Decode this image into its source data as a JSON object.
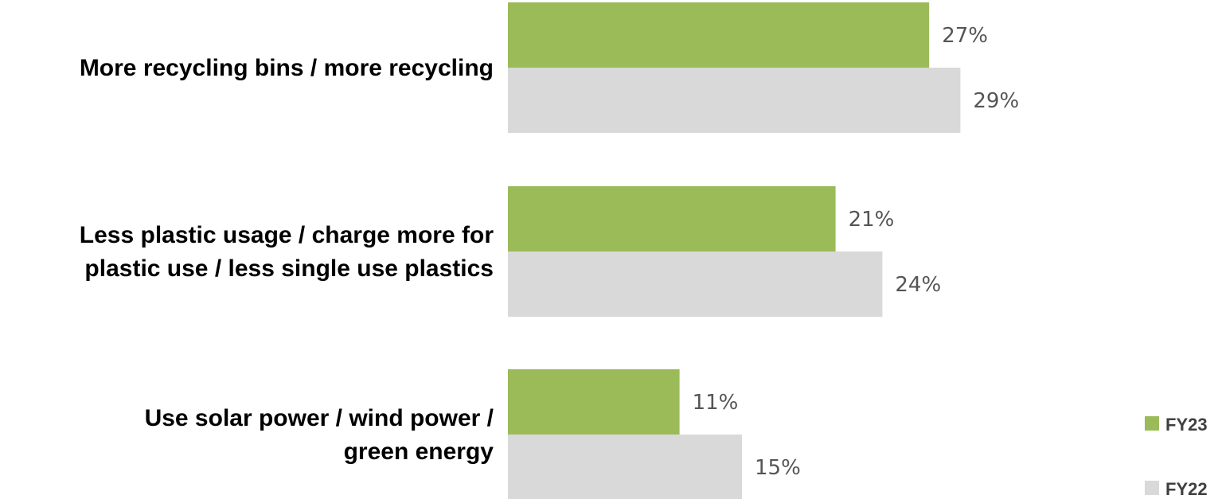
{
  "chart_data": {
    "type": "bar",
    "orientation": "horizontal",
    "categories": [
      [
        "More recycling bins / more recycling"
      ],
      [
        "Less plastic usage / charge more for",
        "plastic use / less single use plastics"
      ],
      [
        "Use solar power / wind power /",
        "green energy"
      ]
    ],
    "series": [
      {
        "name": "FY23",
        "color": "#9BBB59",
        "values": [
          27,
          21,
          11
        ],
        "labels": [
          "27%",
          "21%",
          "11%"
        ]
      },
      {
        "name": "FY22",
        "color": "#D9D9D9",
        "values": [
          29,
          24,
          15
        ],
        "labels": [
          "29%",
          "24%",
          "15%"
        ]
      }
    ],
    "xlim": [
      0,
      100
    ],
    "grid": false,
    "legend_position": "bottom-right"
  }
}
